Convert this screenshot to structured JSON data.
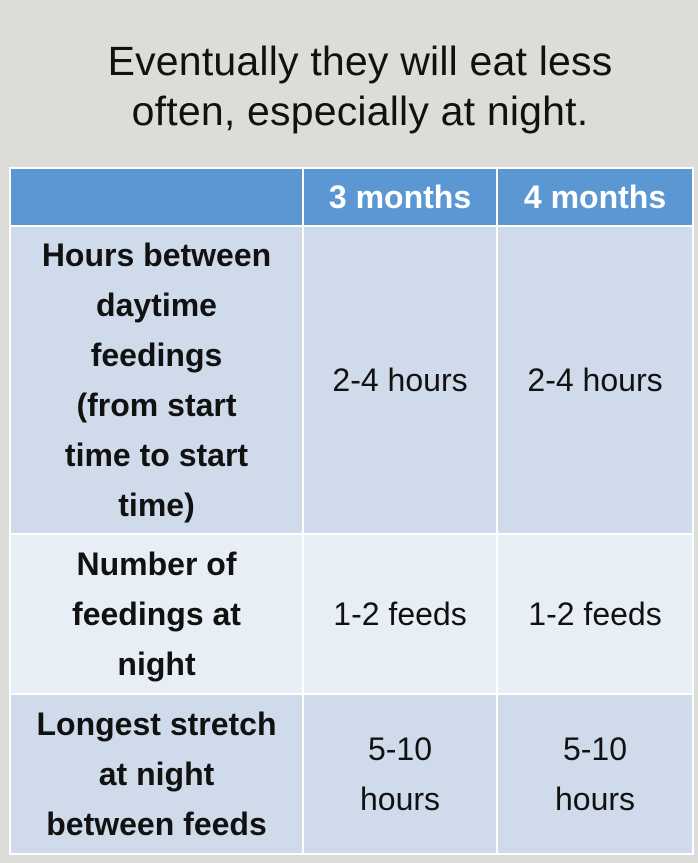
{
  "title": {
    "line1": "Eventually they will eat less",
    "line2": "often, especially at night."
  },
  "table": {
    "headers": [
      "",
      "3 months",
      "4 months"
    ],
    "rows": [
      {
        "label": [
          "Hours between",
          "daytime",
          "feedings",
          "(from start",
          "time to start",
          "time)"
        ],
        "values": [
          [
            "2-4 hours"
          ],
          [
            "2-4 hours"
          ]
        ]
      },
      {
        "label": [
          "Number of",
          "feedings at",
          "night"
        ],
        "values": [
          [
            "1-2 feeds"
          ],
          [
            "1-2 feeds"
          ]
        ]
      },
      {
        "label": [
          "Longest stretch",
          "at night",
          "between feeds"
        ],
        "values": [
          [
            "5-10",
            "hours"
          ],
          [
            "5-10",
            "hours"
          ]
        ]
      }
    ]
  },
  "colors": {
    "header_bg": "#5b97d3",
    "row_dark": "#cfdbea",
    "row_light": "#e8eef6",
    "page_bg": "#dcdcd8"
  }
}
